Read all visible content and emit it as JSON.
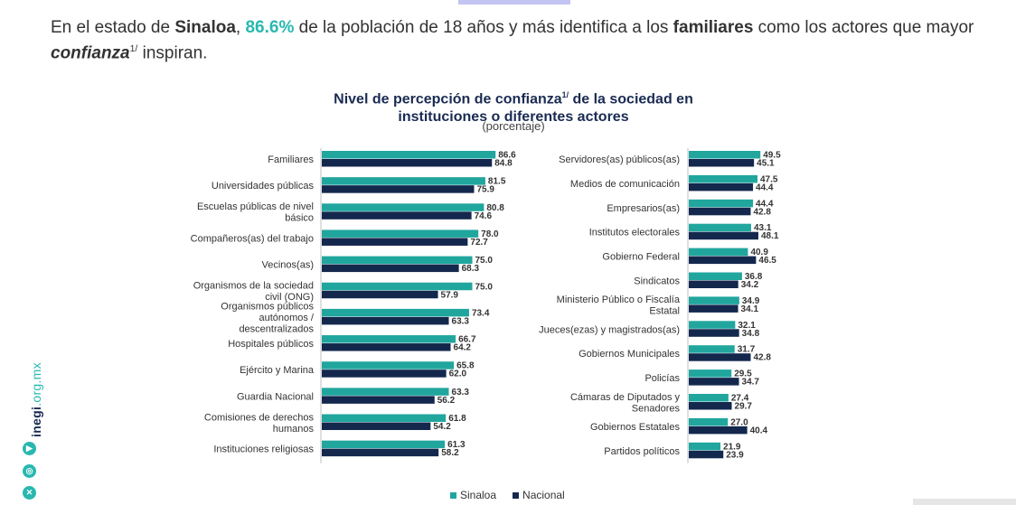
{
  "headline": {
    "p1": "En el estado de ",
    "state": "Sinaloa",
    "p2": ", ",
    "pct": "86.6%",
    "p3": " de la población de 18 años y más identifica a los ",
    "actor": "familiares",
    "p4": " como los actores que mayor ",
    "word": "confianza",
    "sup": "1/",
    "p5": " inspiran."
  },
  "chart_title": {
    "line1": "Nivel de percepción de confianza",
    "sup": "1/",
    "line1_end": " de la sociedad en",
    "line2": "instituciones o diferentes actores",
    "subtitle": "(porcentaje)"
  },
  "branding": {
    "site_bold": "inegi",
    "site_rest": ".org.mx",
    "icons": [
      "youtube-icon",
      "instagram-icon",
      "x-icon"
    ]
  },
  "chart_data": {
    "type": "bar",
    "orientation": "horizontal",
    "title": "Nivel de percepción de confianza 1/ de la sociedad en instituciones o diferentes actores",
    "subtitle": "(porcentaje)",
    "legend": {
      "position": "bottom",
      "entries": [
        "Sinaloa",
        "Nacional"
      ]
    },
    "colors": {
      "Sinaloa": "#21a69e",
      "Nacional": "#14284e"
    },
    "panels": [
      {
        "categories": [
          "Familiares",
          "Universidades públicas",
          "Escuelas públicas de nivel básico",
          "Compañeros(as) del trabajo",
          "Vecinos(as)",
          "Organismos de la sociedad civil (ONG)",
          "Organismos públicos autónomos / descentralizados",
          "Hospitales públicos",
          "Ejército y Marina",
          "Guardia Nacional",
          "Comisiones de derechos humanos",
          "Instituciones religiosas"
        ],
        "series": [
          {
            "name": "Sinaloa",
            "values": [
              86.6,
              81.5,
              80.8,
              78.0,
              75.0,
              75.0,
              73.4,
              66.7,
              65.8,
              63.3,
              61.8,
              61.3
            ]
          },
          {
            "name": "Nacional",
            "values": [
              84.8,
              75.9,
              74.6,
              72.7,
              68.3,
              57.9,
              63.3,
              64.2,
              62.0,
              56.2,
              54.2,
              58.2
            ]
          }
        ]
      },
      {
        "categories": [
          "Servidores(as) públicos(as)",
          "Medios de comunicación",
          "Empresarios(as)",
          "Institutos electorales",
          "Gobierno Federal",
          "Sindicatos",
          "Ministerio Público o Fiscalía Estatal",
          "Jueces(ezas) y magistrados(as)",
          "Gobiernos Municipales",
          "Policías",
          "Cámaras de Diputados y Senadores",
          "Gobiernos Estatales",
          "Partidos políticos"
        ],
        "series": [
          {
            "name": "Sinaloa",
            "values": [
              49.5,
              47.5,
              44.4,
              43.1,
              40.9,
              36.8,
              34.9,
              32.1,
              31.7,
              29.5,
              27.4,
              27.0,
              21.9
            ]
          },
          {
            "name": "Nacional",
            "values": [
              45.1,
              44.4,
              42.8,
              48.1,
              46.5,
              34.2,
              34.1,
              34.8,
              42.8,
              34.7,
              29.7,
              40.4,
              23.9
            ]
          }
        ]
      }
    ]
  }
}
